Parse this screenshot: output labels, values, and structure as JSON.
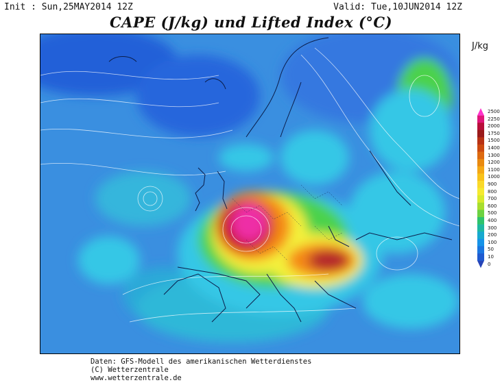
{
  "header": {
    "init": "Init : Sun,25MAY2014 12Z",
    "valid": "Valid: Tue,10JUN2014 12Z",
    "title": "CAPE (J/kg) und Lifted Index (°C)"
  },
  "legend": {
    "unit": "J/kg",
    "levels": [
      "2500",
      "2250",
      "2000",
      "1750",
      "1500",
      "1400",
      "1300",
      "1200",
      "1100",
      "1000",
      "900",
      "800",
      "700",
      "600",
      "500",
      "400",
      "300",
      "200",
      "100",
      "50",
      "10",
      "0"
    ],
    "colors": [
      "#ff33cc",
      "#e0167a",
      "#b80f3a",
      "#9a1a1a",
      "#b83214",
      "#cc4a10",
      "#dd6a10",
      "#e98a10",
      "#f4a815",
      "#f8c21a",
      "#fad92a",
      "#f5ea30",
      "#d8ea2c",
      "#a8de2e",
      "#6cd242",
      "#2ec36c",
      "#1eb8a2",
      "#17a9cf",
      "#1693e8",
      "#1a76e0",
      "#1f5bd0",
      "#2644b8"
    ]
  },
  "footer": {
    "line1": "Daten: GFS-Modell des amerikanischen Wetterdienstes",
    "line2": "(C) Wetterzentrale",
    "line3": "www.wetterzentrale.de"
  },
  "map": {
    "colors": {
      "ocean_base": "#3a8fe0",
      "deep_blue": "#1f5ed6",
      "cyan": "#35c7e6",
      "green": "#4cd24c",
      "yellow": "#f4f03a",
      "orange": "#f58a18",
      "red": "#c9141e",
      "magenta": "#ee2fa6"
    }
  }
}
